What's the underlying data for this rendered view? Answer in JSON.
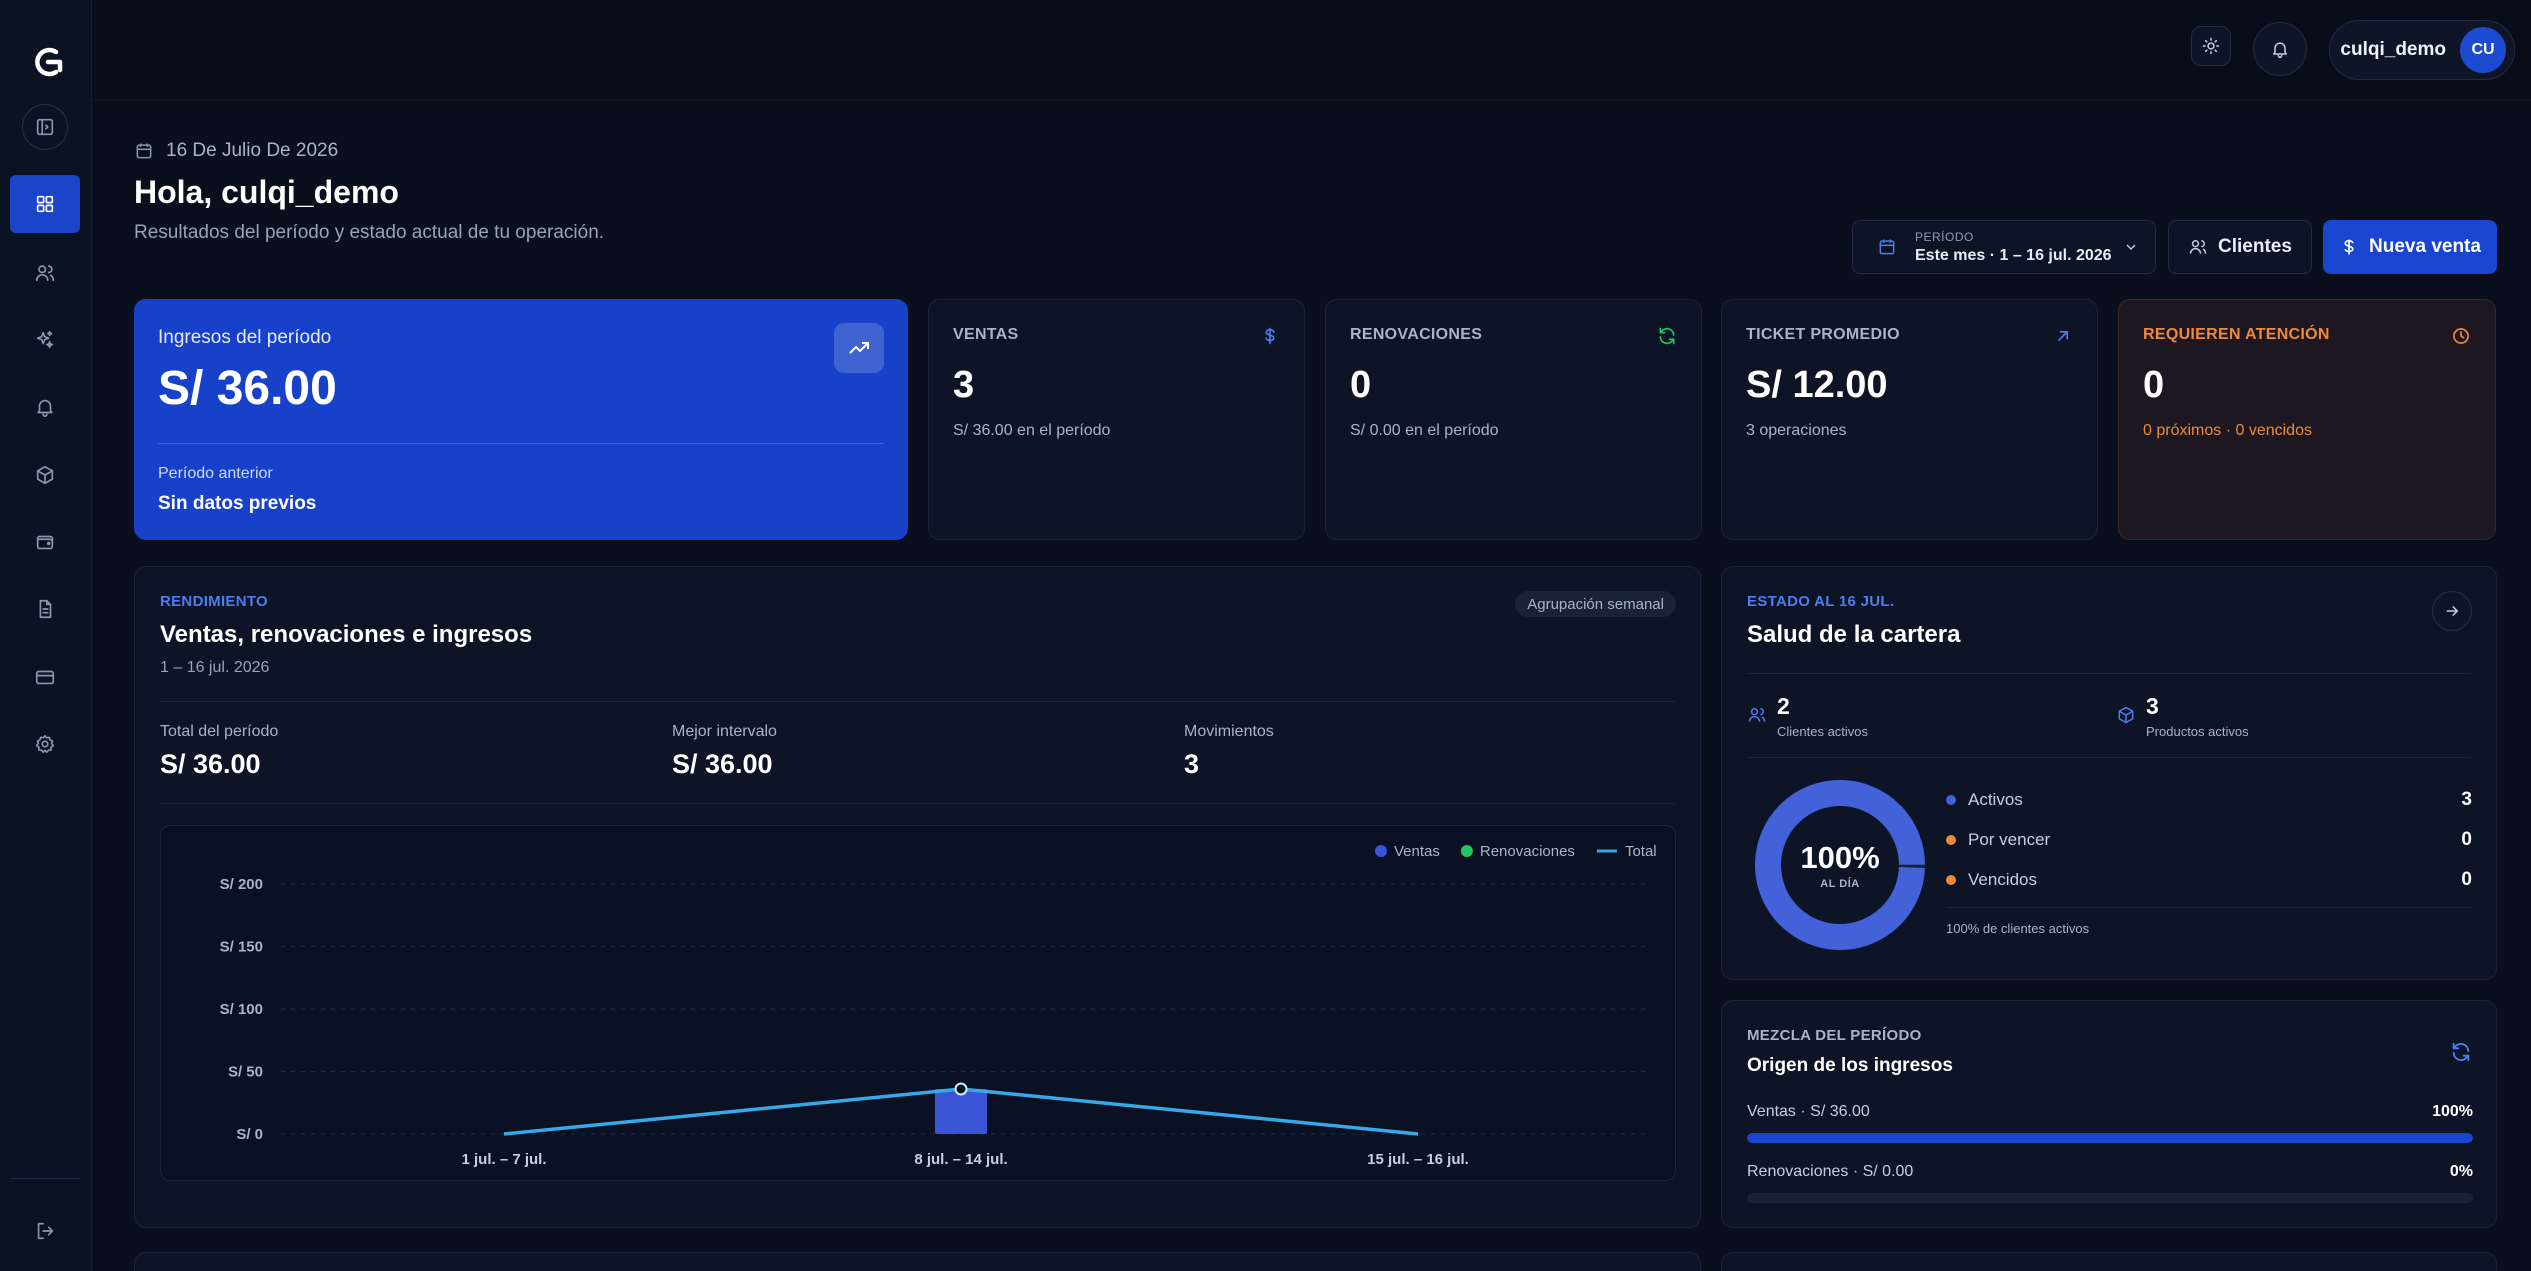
{
  "user": {
    "name": "culqi_demo",
    "initials": "CU"
  },
  "header": {
    "date": "16 De Julio De 2026",
    "greeting": "Hola, culqi_demo",
    "subtitle": "Resultados del período y estado actual de tu operación."
  },
  "controls": {
    "period_label": "PERÍODO",
    "period_value": "Este mes · 1 – 16 jul. 2026",
    "clients_label": "Clientes",
    "new_sale_label": "Nueva venta"
  },
  "kpis": {
    "main": {
      "title": "Ingresos del período",
      "value": "S/ 36.00",
      "prev_label": "Período anterior",
      "prev_value": "Sin datos previos"
    },
    "cards": [
      {
        "title": "VENTAS",
        "value": "3",
        "sub": "S/ 36.00 en el período",
        "icon": "dollar-icon",
        "icon_color": "#4f7df0"
      },
      {
        "title": "RENOVACIONES",
        "value": "0",
        "sub": "S/ 0.00 en el período",
        "icon": "refresh-icon",
        "icon_color": "#22c55e"
      },
      {
        "title": "TICKET PROMEDIO",
        "value": "S/ 12.00",
        "sub": "3 operaciones",
        "icon": "arrow-up-right-icon",
        "icon_color": "#4f7df0"
      },
      {
        "title": "REQUIEREN ATENCIÓN",
        "value": "0",
        "sub": "0 próximos · 0 vencidos",
        "icon": "clock-icon",
        "icon_color": "#f0893a"
      }
    ]
  },
  "performance": {
    "eyebrow": "RENDIMIENTO",
    "title": "Ventas, renovaciones e ingresos",
    "range": "1 – 16 jul. 2026",
    "grouping": "Agrupación semanal",
    "stats": [
      {
        "label": "Total del período",
        "value": "S/ 36.00"
      },
      {
        "label": "Mejor intervalo",
        "value": "S/ 36.00"
      },
      {
        "label": "Movimientos",
        "value": "3"
      }
    ]
  },
  "chart_data": {
    "type": "bar",
    "categories": [
      "1 jul. – 7 jul.",
      "8 jul. – 14 jul.",
      "15 jul. – 16 jul."
    ],
    "series": [
      {
        "name": "Ventas",
        "type": "bar",
        "color": "#3b55d6",
        "values": [
          0,
          36,
          0
        ]
      },
      {
        "name": "Renovaciones",
        "type": "bar",
        "color": "#22c55e",
        "values": [
          0,
          0,
          0
        ]
      },
      {
        "name": "Total",
        "type": "line",
        "color": "#38a8e8",
        "values": [
          0,
          36,
          0
        ]
      }
    ],
    "y_ticks": [
      "S/ 0",
      "S/ 50",
      "S/ 100",
      "S/ 150",
      "S/ 200"
    ],
    "ylim": [
      0,
      200
    ],
    "grid": true,
    "legend": "top-right"
  },
  "health": {
    "eyebrow": "ESTADO AL 16 JUL.",
    "title": "Salud de la cartera",
    "clients_value": "2",
    "clients_label": "Clientes activos",
    "products_value": "3",
    "products_label": "Productos activos",
    "donut_pct": "100%",
    "donut_label": "AL DÍA",
    "donut_fraction": 1.0,
    "legend": [
      {
        "label": "Activos",
        "value": "3",
        "color": "#4361d8"
      },
      {
        "label": "Por vencer",
        "value": "0",
        "color": "#f0893a"
      },
      {
        "label": "Vencidos",
        "value": "0",
        "color": "#f0893a"
      }
    ],
    "note": "100% de clientes activos"
  },
  "mix": {
    "eyebrow": "MEZCLA DEL PERÍODO",
    "title": "Origen de los ingresos",
    "rows": [
      {
        "label": "Ventas · S/ 36.00",
        "pct": "100%",
        "fraction": 1.0
      },
      {
        "label": "Renovaciones · S/ 0.00",
        "pct": "0%",
        "fraction": 0.0
      }
    ]
  }
}
